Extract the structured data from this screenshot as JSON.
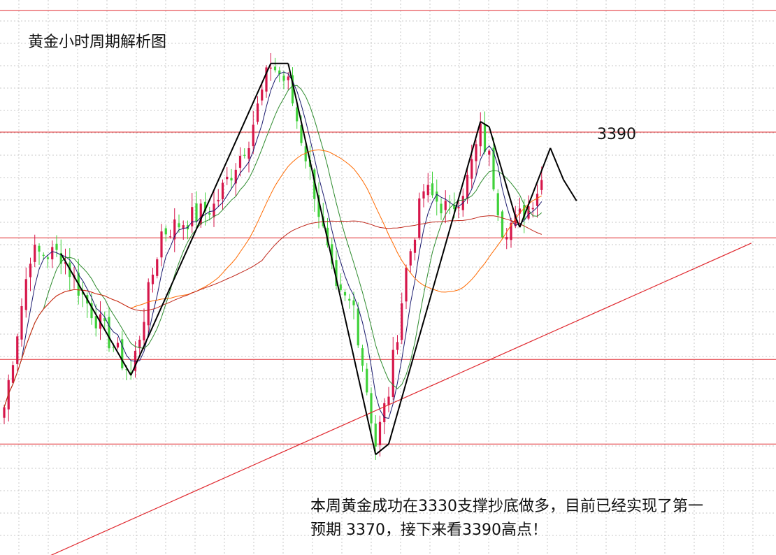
{
  "title": "黄金小时周期解析图",
  "target_label": "3390",
  "note_line1": "本周黄金成功在3330支撑抄底做多，目前已经实现了第一",
  "note_line2": "预期 3370，接下来看3390高点！",
  "colors": {
    "up": "#d6164a",
    "down": "#3fd13a",
    "level_line": "#e0282e",
    "grid": "#c8c8c8",
    "ma_fast": "#1a1a6e",
    "ma_mid": "#2e8b2e",
    "ma_slow1": "#ff6a00",
    "ma_slow2": "#c0281c",
    "wave": "#000000"
  },
  "chart_data": {
    "type": "candlestick",
    "title": "黄金小时周期解析图",
    "ylim": [
      3309,
      3414
    ],
    "horizontal_levels": [
      3412,
      3389,
      3369,
      3346,
      3330
    ],
    "trendline": {
      "points": [
        [
          0,
          3305
        ],
        [
          171,
          3368
        ]
      ]
    },
    "wave_path": [
      [
        13,
        3366
      ],
      [
        29,
        3343
      ],
      [
        61,
        3402
      ],
      [
        65,
        3402
      ],
      [
        85,
        3328
      ],
      [
        88,
        3330
      ],
      [
        109,
        3391
      ],
      [
        111,
        3390
      ],
      [
        117,
        3373
      ],
      [
        118,
        3371
      ],
      [
        125,
        3386
      ],
      [
        128,
        3380
      ],
      [
        131,
        3376
      ]
    ],
    "wave_projection": [
      [
        125,
        3386
      ],
      [
        128,
        3380
      ],
      [
        131,
        3376
      ]
    ],
    "anchors": [
      [
        0,
        3337
      ],
      [
        6,
        3366
      ],
      [
        13,
        3366
      ],
      [
        18,
        3358
      ],
      [
        29,
        3343
      ],
      [
        36,
        3370
      ],
      [
        48,
        3375
      ],
      [
        56,
        3388
      ],
      [
        61,
        3402
      ],
      [
        65,
        3398
      ],
      [
        71,
        3378
      ],
      [
        76,
        3358
      ],
      [
        80,
        3356
      ],
      [
        85,
        3330
      ],
      [
        88,
        3340
      ],
      [
        92,
        3363
      ],
      [
        96,
        3378
      ],
      [
        102,
        3374
      ],
      [
        106,
        3380
      ],
      [
        109,
        3389
      ],
      [
        111,
        3384
      ],
      [
        114,
        3371
      ],
      [
        117,
        3372
      ],
      [
        120,
        3375
      ],
      [
        123,
        3380
      ]
    ],
    "ma_note": "moving-average curves derived from closes (periods 5, 10, 30, 60)"
  }
}
